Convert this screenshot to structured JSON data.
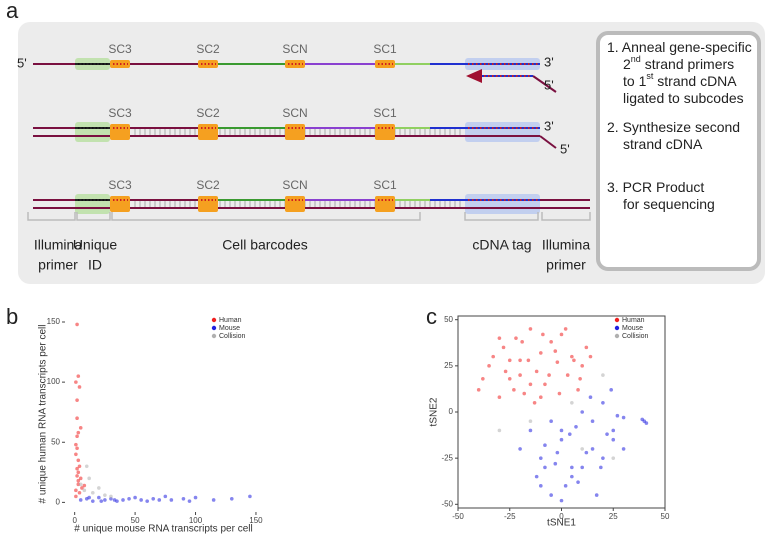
{
  "panel_labels": [
    "a",
    "b",
    "c"
  ],
  "diagram": {
    "rows": [
      {
        "segments": [
          "SC3",
          "SC2",
          "SCN",
          "SC1"
        ],
        "left": "5'",
        "right": "3'",
        "primer": "5'"
      },
      {
        "segments": [
          "SC3",
          "SC2",
          "SCN",
          "SC1"
        ],
        "right": "3'",
        "primer": "5'"
      },
      {
        "segments": [
          "SC3",
          "SC2",
          "SCN",
          "SC1"
        ]
      }
    ],
    "regions": [
      [
        "Illumina",
        "primer"
      ],
      [
        "Unique",
        "ID"
      ],
      [
        "Cell barcodes"
      ],
      [
        "cDNA tag"
      ],
      [
        "Illumina",
        "primer"
      ]
    ],
    "steps": [
      [
        [
          {
            "text": "1. Anneal gene-specific"
          }
        ],
        [
          {
            "text": "2"
          },
          {
            "sup": "nd"
          },
          {
            "text": " strand primers"
          }
        ],
        [
          {
            "text": "to 1"
          },
          {
            "sup": "st"
          },
          {
            "text": " strand cDNA"
          }
        ],
        [
          {
            "text": "ligated to subcodes"
          }
        ]
      ],
      [
        [
          {
            "text": "2. Synthesize second"
          }
        ],
        [
          {
            "text": "strand cDNA"
          }
        ]
      ],
      [
        [
          {
            "text": "3. PCR Product"
          }
        ],
        [
          {
            "text": "for sequencing"
          }
        ]
      ]
    ]
  },
  "chart_data": [
    {
      "type": "scatter",
      "xlabel": "# unique mouse RNA transcripts per cell",
      "ylabel": "# unique human RNA transcripts per cell",
      "xlim": [
        -8,
        155
      ],
      "ylim": [
        -8,
        155
      ],
      "xticks": [
        0,
        50,
        100,
        150
      ],
      "yticks": [
        0,
        50,
        100,
        150
      ],
      "frame": false,
      "legend": "top-right",
      "series": [
        {
          "name": "Human",
          "color": "#f02020",
          "x": [
            1,
            2,
            3,
            1,
            2,
            4,
            3,
            2,
            1,
            5,
            2,
            3,
            1,
            4,
            2,
            3,
            6,
            2,
            1,
            3,
            4,
            2,
            5,
            3,
            8
          ],
          "y": [
            10,
            22,
            35,
            48,
            55,
            8,
            15,
            28,
            40,
            62,
            70,
            18,
            5,
            30,
            45,
            25,
            12,
            85,
            100,
            105,
            96,
            148,
            20,
            58,
            14
          ]
        },
        {
          "name": "Mouse",
          "color": "#2020e0",
          "x": [
            5,
            10,
            15,
            20,
            25,
            30,
            35,
            40,
            45,
            50,
            55,
            60,
            65,
            70,
            75,
            80,
            90,
            95,
            100,
            115,
            130,
            145,
            12,
            22,
            33
          ],
          "y": [
            2,
            3,
            1,
            4,
            2,
            3,
            1,
            2,
            3,
            4,
            2,
            1,
            3,
            2,
            5,
            2,
            3,
            1,
            4,
            2,
            3,
            5,
            4,
            1,
            2
          ]
        },
        {
          "name": "Collision",
          "color": "#b0b0b0",
          "x": [
            5,
            8,
            12,
            15,
            20,
            25,
            10,
            30
          ],
          "y": [
            15,
            10,
            20,
            8,
            12,
            6,
            30,
            5
          ]
        }
      ]
    },
    {
      "type": "scatter",
      "xlabel": "tSNE1",
      "ylabel": "tSNE2",
      "xlim": [
        -50,
        50
      ],
      "ylim": [
        -52,
        52
      ],
      "xticks": [
        -50,
        -25,
        0,
        25,
        50
      ],
      "yticks": [
        -50,
        -25,
        0,
        25,
        50
      ],
      "frame": true,
      "legend": "top-right",
      "series": [
        {
          "name": "Human",
          "color": "#f02020",
          "x": [
            -40,
            -35,
            -30,
            -28,
            -25,
            -22,
            -20,
            -18,
            -15,
            -12,
            -10,
            -8,
            -5,
            -2,
            0,
            3,
            5,
            8,
            10,
            12,
            -38,
            -33,
            -27,
            -23,
            -19,
            -16,
            -13,
            -9,
            -6,
            -3,
            -1,
            2,
            6,
            9,
            14,
            -30,
            -20,
            -10,
            -25,
            -15
          ],
          "y": [
            12,
            25,
            8,
            35,
            18,
            40,
            28,
            10,
            45,
            22,
            32,
            15,
            38,
            27,
            42,
            20,
            30,
            12,
            25,
            35,
            18,
            30,
            22,
            12,
            38,
            28,
            5,
            42,
            20,
            33,
            10,
            45,
            28,
            18,
            30,
            40,
            20,
            8,
            28,
            15
          ]
        },
        {
          "name": "Mouse",
          "color": "#2020e0",
          "x": [
            -20,
            -15,
            -10,
            -5,
            0,
            5,
            10,
            15,
            20,
            25,
            30,
            -12,
            -8,
            -3,
            2,
            7,
            12,
            17,
            22,
            27,
            -5,
            0,
            5,
            10,
            15,
            20,
            25,
            -10,
            -2,
            4,
            8,
            14,
            19,
            24,
            30,
            40,
            41,
            39,
            -8,
            0
          ],
          "y": [
            -20,
            -10,
            -25,
            -5,
            -15,
            -30,
            0,
            -20,
            5,
            -10,
            -3,
            -35,
            -18,
            -28,
            -40,
            -8,
            -22,
            -45,
            -12,
            -2,
            -45,
            -48,
            -35,
            -30,
            -5,
            -25,
            -15,
            -40,
            -22,
            -12,
            -38,
            8,
            -30,
            12,
            -20,
            -5,
            -6,
            -4,
            -30,
            -10
          ]
        },
        {
          "name": "Collision",
          "color": "#b0b0b0",
          "x": [
            -15,
            5,
            20,
            25,
            -30,
            10
          ],
          "y": [
            -5,
            5,
            20,
            -25,
            -10,
            -20
          ]
        }
      ]
    }
  ]
}
